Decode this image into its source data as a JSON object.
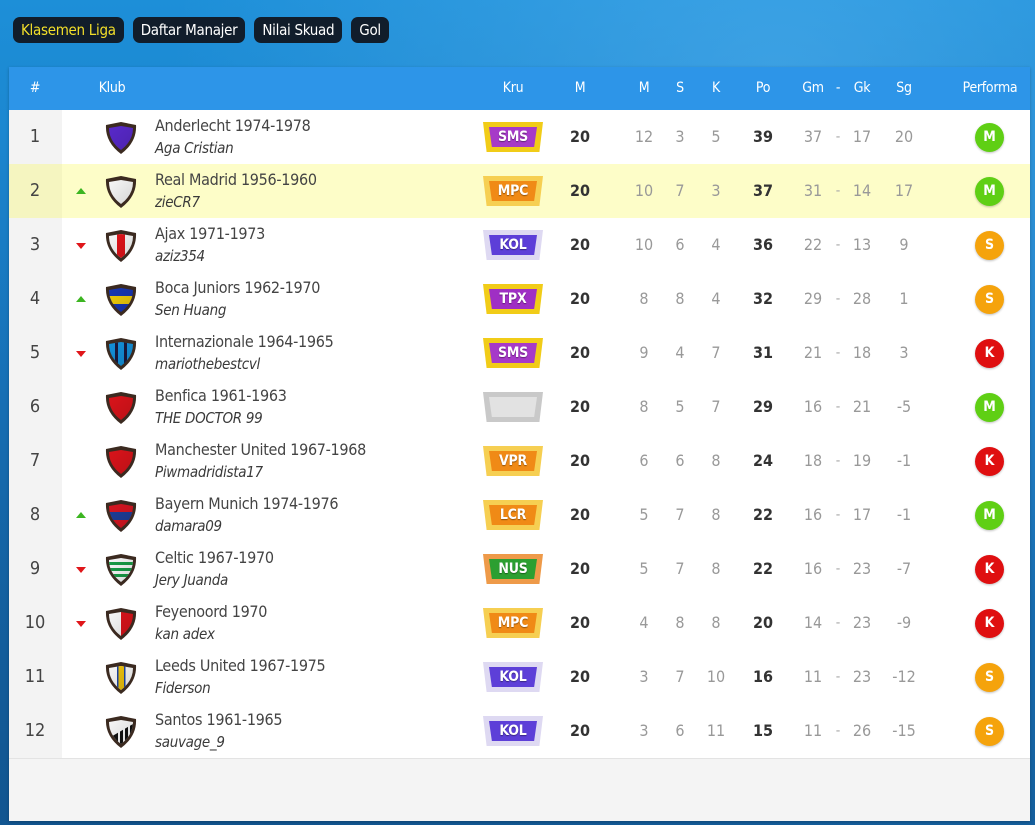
{
  "tabs": [
    {
      "label": "Klasemen Liga",
      "active": true
    },
    {
      "label": "Daftar Manajer",
      "active": false
    },
    {
      "label": "Nilai Skuad",
      "active": false
    },
    {
      "label": "Gol",
      "active": false
    }
  ],
  "headers": {
    "rank": "#",
    "club": "Klub",
    "crew": "Kru",
    "played": "M",
    "won": "M",
    "drawn": "S",
    "lost": "K",
    "points": "Po",
    "goals_for": "Gm",
    "sep": "-",
    "goals_against": "Gk",
    "goal_diff": "Sg",
    "form": "Performa"
  },
  "colors": {
    "header_bg": "#2d95e8",
    "active_tab_text": "#f3df2a",
    "highlight_row": "#fdfdc8",
    "trend_up": "#3cb521",
    "trend_down": "#e0161a",
    "form_M": "#5fcf14",
    "form_S": "#f5a30c",
    "form_K": "#df0f10"
  },
  "crew_styles": {
    "SMS": {
      "outer": "#f1cc18",
      "inner": "#a63ac8"
    },
    "MPC": {
      "outer": "#f6cf52",
      "inner": "#f08a16"
    },
    "KOL": {
      "outer": "#ded9f2",
      "inner": "#5d3fd8"
    },
    "TPX": {
      "outer": "#f1cc18",
      "inner": "#9f2fc4"
    },
    "VPR": {
      "outer": "#f6cf52",
      "inner": "#f08a16"
    },
    "LCR": {
      "outer": "#f6cf52",
      "inner": "#f08a16"
    },
    "NUS": {
      "outer": "#ee9a49",
      "inner": "#2c9f31"
    },
    "": {
      "outer": "#c9c9c9",
      "inner": "#e2e2e2"
    }
  },
  "rows": [
    {
      "rank": "1",
      "trend": "",
      "club": "Anderlecht 1974-1978",
      "manager": "Aga Cristian",
      "crest_icon": "anderlecht-crest-icon",
      "crest_colors": [
        "#5b2ad0",
        "#5b2ad0"
      ],
      "crest_pattern": "solid",
      "crew": "SMS",
      "played": "20",
      "won": "12",
      "drawn": "3",
      "lost": "5",
      "points": "39",
      "gf": "37",
      "ga": "17",
      "gd": "20",
      "form": "M",
      "highlight": false
    },
    {
      "rank": "2",
      "trend": "up",
      "club": "Real Madrid 1956-1960",
      "manager": "zieCR7",
      "crest_icon": "real-madrid-crest-icon",
      "crest_colors": [
        "#ffffff",
        "#ffffff"
      ],
      "crest_pattern": "solid",
      "crew": "MPC",
      "played": "20",
      "won": "10",
      "drawn": "7",
      "lost": "3",
      "points": "37",
      "gf": "31",
      "ga": "14",
      "gd": "17",
      "form": "M",
      "highlight": true
    },
    {
      "rank": "3",
      "trend": "down",
      "club": "Ajax 1971-1973",
      "manager": "aziz354",
      "crest_icon": "ajax-crest-icon",
      "crest_colors": [
        "#ffffff",
        "#e8141b"
      ],
      "crest_pattern": "vstripe",
      "crew": "KOL",
      "played": "20",
      "won": "10",
      "drawn": "6",
      "lost": "4",
      "points": "36",
      "gf": "22",
      "ga": "13",
      "gd": "9",
      "form": "S",
      "highlight": false
    },
    {
      "rank": "4",
      "trend": "up",
      "club": "Boca Juniors 1962-1970",
      "manager": "Sen Huang",
      "crest_icon": "boca-juniors-crest-icon",
      "crest_colors": [
        "#1838b8",
        "#f6d10a"
      ],
      "crest_pattern": "hband",
      "crew": "TPX",
      "played": "20",
      "won": "8",
      "drawn": "8",
      "lost": "4",
      "points": "32",
      "gf": "29",
      "ga": "28",
      "gd": "1",
      "form": "S",
      "highlight": false
    },
    {
      "rank": "5",
      "trend": "down",
      "club": "Internazionale 1964-1965",
      "manager": "mariothebestcvl",
      "crest_icon": "internazionale-crest-icon",
      "crest_colors": [
        "#1495e0",
        "#1a1a40"
      ],
      "crest_pattern": "stripes",
      "crew": "SMS",
      "played": "20",
      "won": "9",
      "drawn": "4",
      "lost": "7",
      "points": "31",
      "gf": "21",
      "ga": "18",
      "gd": "3",
      "form": "K",
      "highlight": false
    },
    {
      "rank": "6",
      "trend": "",
      "club": "Benfica 1961-1963",
      "manager": "THE DOCTOR 99",
      "crest_icon": "benfica-crest-icon",
      "crest_colors": [
        "#e0141b",
        "#e0141b"
      ],
      "crest_pattern": "solid",
      "crew": "",
      "played": "20",
      "won": "8",
      "drawn": "5",
      "lost": "7",
      "points": "29",
      "gf": "16",
      "ga": "21",
      "gd": "-5",
      "form": "M",
      "highlight": false
    },
    {
      "rank": "7",
      "trend": "",
      "club": "Manchester United 1967-1968",
      "manager": "Piwmadridista17",
      "crest_icon": "manchester-united-crest-icon",
      "crest_colors": [
        "#e0141b",
        "#e0141b"
      ],
      "crest_pattern": "solid",
      "crew": "VPR",
      "played": "20",
      "won": "6",
      "drawn": "6",
      "lost": "8",
      "points": "24",
      "gf": "18",
      "ga": "19",
      "gd": "-1",
      "form": "K",
      "highlight": false
    },
    {
      "rank": "8",
      "trend": "up",
      "club": "Bayern Munich 1974-1976",
      "manager": "damara09",
      "crest_icon": "bayern-munich-crest-icon",
      "crest_colors": [
        "#dc1622",
        "#1e3f9c"
      ],
      "crest_pattern": "hband",
      "crew": "LCR",
      "played": "20",
      "won": "5",
      "drawn": "7",
      "lost": "8",
      "points": "22",
      "gf": "16",
      "ga": "17",
      "gd": "-1",
      "form": "M",
      "highlight": false
    },
    {
      "rank": "9",
      "trend": "down",
      "club": "Celtic 1967-1970",
      "manager": "Jery Juanda",
      "crest_icon": "celtic-crest-icon",
      "crest_colors": [
        "#18a048",
        "#ffffff"
      ],
      "crest_pattern": "hoops",
      "crew": "NUS",
      "played": "20",
      "won": "5",
      "drawn": "7",
      "lost": "8",
      "points": "22",
      "gf": "16",
      "ga": "23",
      "gd": "-7",
      "form": "K",
      "highlight": false
    },
    {
      "rank": "10",
      "trend": "down",
      "club": "Feyenoord 1970",
      "manager": "kan adex",
      "crest_icon": "feyenoord-crest-icon",
      "crest_colors": [
        "#e0141b",
        "#ffffff"
      ],
      "crest_pattern": "halves",
      "crew": "MPC",
      "played": "20",
      "won": "4",
      "drawn": "8",
      "lost": "8",
      "points": "20",
      "gf": "14",
      "ga": "23",
      "gd": "-9",
      "form": "K",
      "highlight": false
    },
    {
      "rank": "11",
      "trend": "",
      "club": "Leeds United 1967-1975",
      "manager": "Fiderson",
      "crest_icon": "leeds-united-crest-icon",
      "crest_colors": [
        "#ffffff",
        "#f2c60e"
      ],
      "crest_pattern": "leeds",
      "crew": "KOL",
      "played": "20",
      "won": "3",
      "drawn": "7",
      "lost": "10",
      "points": "16",
      "gf": "11",
      "ga": "23",
      "gd": "-12",
      "form": "S",
      "highlight": false
    },
    {
      "rank": "12",
      "trend": "",
      "club": "Santos 1961-1965",
      "manager": "sauvage_9",
      "crest_icon": "santos-crest-icon",
      "crest_colors": [
        "#ffffff",
        "#111111"
      ],
      "crest_pattern": "santos",
      "crew": "KOL",
      "played": "20",
      "won": "3",
      "drawn": "6",
      "lost": "11",
      "points": "15",
      "gf": "11",
      "ga": "26",
      "gd": "-15",
      "form": "S",
      "highlight": false
    }
  ]
}
